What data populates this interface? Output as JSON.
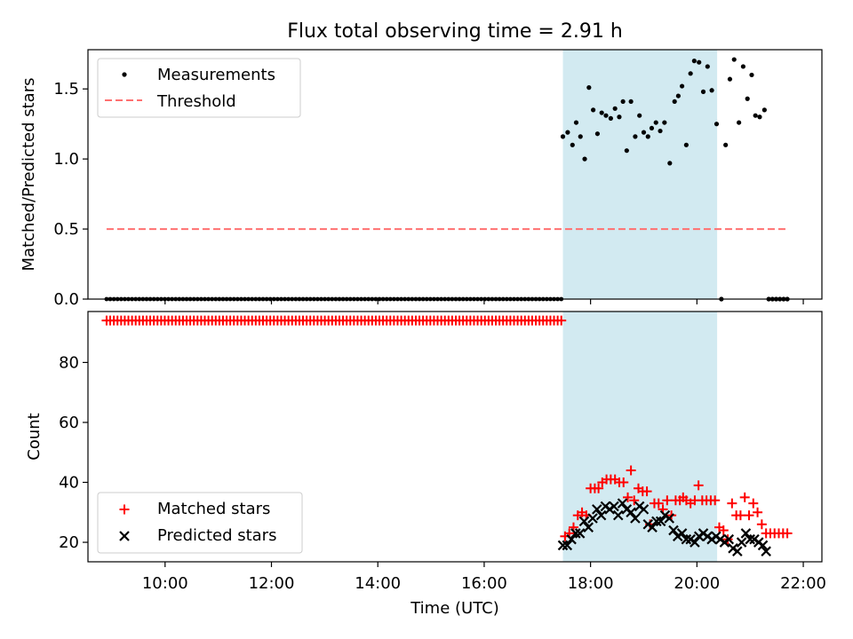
{
  "chart_data": {
    "title": "Flux total observing time = 2.91 h",
    "xlabel": "Time (UTC)",
    "x_units": "hours (UTC)",
    "xlim": [
      8.55,
      22.35
    ],
    "xticks": [
      10,
      12,
      14,
      16,
      18,
      20,
      22
    ],
    "xtick_labels": [
      "10:00",
      "12:00",
      "14:00",
      "16:00",
      "18:00",
      "20:00",
      "22:00"
    ],
    "observing_window": {
      "start": 17.48,
      "end": 20.38,
      "color": "#add8e6"
    },
    "top": {
      "type": "scatter",
      "ylabel": "Matched/Predicted stars",
      "ylim": [
        0,
        1.78
      ],
      "yticks": [
        0.0,
        0.5,
        1.0,
        1.5
      ],
      "ytick_labels": [
        "0.0",
        "0.5",
        "1.0",
        "1.5"
      ],
      "legend": {
        "position": "top-left",
        "items": [
          "Measurements",
          "Threshold"
        ]
      },
      "threshold": {
        "name": "Threshold",
        "value": 0.5,
        "x_range": [
          8.9,
          21.7
        ],
        "color": "#ff7070"
      },
      "measurements": {
        "name": "Measurements",
        "color": "#000000",
        "zero_x_range": [
          8.9,
          17.45
        ],
        "zero_count": 126,
        "points": [
          [
            17.48,
            1.16
          ],
          [
            17.57,
            1.19
          ],
          [
            17.66,
            1.1
          ],
          [
            17.73,
            1.26
          ],
          [
            17.81,
            1.16
          ],
          [
            17.89,
            1.0
          ],
          [
            17.97,
            1.51
          ],
          [
            18.05,
            1.35
          ],
          [
            18.13,
            1.18
          ],
          [
            18.21,
            1.33
          ],
          [
            18.29,
            1.31
          ],
          [
            18.38,
            1.29
          ],
          [
            18.46,
            1.36
          ],
          [
            18.54,
            1.3
          ],
          [
            18.61,
            1.41
          ],
          [
            18.68,
            1.06
          ],
          [
            18.76,
            1.41
          ],
          [
            18.84,
            1.16
          ],
          [
            18.92,
            1.31
          ],
          [
            19.0,
            1.19
          ],
          [
            19.08,
            1.16
          ],
          [
            19.15,
            1.22
          ],
          [
            19.23,
            1.26
          ],
          [
            19.31,
            1.2
          ],
          [
            19.39,
            1.26
          ],
          [
            19.49,
            0.97
          ],
          [
            19.58,
            1.41
          ],
          [
            19.65,
            1.45
          ],
          [
            19.72,
            1.52
          ],
          [
            19.8,
            1.1
          ],
          [
            19.88,
            1.61
          ],
          [
            19.95,
            1.7
          ],
          [
            20.04,
            1.69
          ],
          [
            20.12,
            1.48
          ],
          [
            20.2,
            1.66
          ],
          [
            20.28,
            1.49
          ],
          [
            20.37,
            1.25
          ],
          [
            20.46,
            0.0
          ],
          [
            20.54,
            1.1
          ],
          [
            20.62,
            1.57
          ],
          [
            20.7,
            1.71
          ],
          [
            20.79,
            1.26
          ],
          [
            20.87,
            1.66
          ],
          [
            20.95,
            1.43
          ],
          [
            21.03,
            1.6
          ],
          [
            21.1,
            1.31
          ],
          [
            21.18,
            1.3
          ],
          [
            21.27,
            1.35
          ],
          [
            21.35,
            0.0
          ],
          [
            21.42,
            0.0
          ],
          [
            21.49,
            0.0
          ],
          [
            21.56,
            0.0
          ],
          [
            21.63,
            0.0
          ],
          [
            21.7,
            0.0
          ]
        ]
      }
    },
    "bottom": {
      "type": "scatter",
      "ylabel": "Count",
      "ylim": [
        13.5,
        97
      ],
      "yticks": [
        20,
        40,
        60,
        80
      ],
      "ytick_labels": [
        "20",
        "40",
        "60",
        "80"
      ],
      "legend": {
        "position": "bottom-left",
        "items": [
          "Matched stars",
          "Predicted stars"
        ]
      },
      "matched_stars": {
        "name": "Matched stars",
        "color": "#ff0000",
        "marker": "+",
        "flat_value": 94,
        "flat_x_range": [
          8.9,
          17.45
        ],
        "flat_count": 126,
        "points": [
          [
            17.52,
            22
          ],
          [
            17.6,
            23
          ],
          [
            17.68,
            25
          ],
          [
            17.76,
            29
          ],
          [
            17.84,
            30
          ],
          [
            17.92,
            29
          ],
          [
            18.0,
            38
          ],
          [
            18.08,
            38
          ],
          [
            18.15,
            38
          ],
          [
            18.22,
            40
          ],
          [
            18.3,
            41
          ],
          [
            18.38,
            41
          ],
          [
            18.46,
            41
          ],
          [
            18.54,
            40
          ],
          [
            18.62,
            40
          ],
          [
            18.7,
            35
          ],
          [
            18.76,
            44
          ],
          [
            18.82,
            34
          ],
          [
            18.9,
            38
          ],
          [
            18.98,
            37
          ],
          [
            19.06,
            37
          ],
          [
            19.12,
            26
          ],
          [
            19.2,
            33
          ],
          [
            19.28,
            33
          ],
          [
            19.36,
            31
          ],
          [
            19.44,
            34
          ],
          [
            19.52,
            29
          ],
          [
            19.6,
            34
          ],
          [
            19.68,
            34
          ],
          [
            19.74,
            35
          ],
          [
            19.8,
            34
          ],
          [
            19.88,
            33
          ],
          [
            19.96,
            34
          ],
          [
            20.03,
            39
          ],
          [
            20.1,
            34
          ],
          [
            20.18,
            34
          ],
          [
            20.26,
            34
          ],
          [
            20.34,
            34
          ],
          [
            20.42,
            25
          ],
          [
            20.5,
            24
          ],
          [
            20.58,
            21
          ],
          [
            20.66,
            33
          ],
          [
            20.74,
            29
          ],
          [
            20.82,
            29
          ],
          [
            20.9,
            35
          ],
          [
            20.98,
            29
          ],
          [
            21.06,
            33
          ],
          [
            21.14,
            30
          ],
          [
            21.22,
            26
          ],
          [
            21.3,
            23
          ],
          [
            21.38,
            23
          ],
          [
            21.46,
            23
          ],
          [
            21.54,
            23
          ],
          [
            21.62,
            23
          ],
          [
            21.7,
            23
          ]
        ]
      },
      "predicted_stars": {
        "name": "Predicted stars",
        "color": "#000000",
        "marker": "x",
        "points": [
          [
            17.48,
            19
          ],
          [
            17.56,
            19
          ],
          [
            17.64,
            21
          ],
          [
            17.72,
            23
          ],
          [
            17.8,
            23
          ],
          [
            17.88,
            27
          ],
          [
            17.96,
            25
          ],
          [
            18.04,
            28
          ],
          [
            18.12,
            31
          ],
          [
            18.2,
            29
          ],
          [
            18.28,
            32
          ],
          [
            18.36,
            31
          ],
          [
            18.44,
            32
          ],
          [
            18.52,
            29
          ],
          [
            18.6,
            33
          ],
          [
            18.68,
            31
          ],
          [
            18.76,
            30
          ],
          [
            18.84,
            28
          ],
          [
            18.92,
            32
          ],
          [
            19.0,
            31
          ],
          [
            19.08,
            26
          ],
          [
            19.16,
            25
          ],
          [
            19.24,
            27
          ],
          [
            19.32,
            27
          ],
          [
            19.4,
            29
          ],
          [
            19.48,
            28
          ],
          [
            19.56,
            24
          ],
          [
            19.64,
            22
          ],
          [
            19.72,
            23
          ],
          [
            19.8,
            21
          ],
          [
            19.88,
            21
          ],
          [
            19.96,
            20
          ],
          [
            20.04,
            22
          ],
          [
            20.12,
            23
          ],
          [
            20.2,
            22
          ],
          [
            20.28,
            21
          ],
          [
            20.36,
            22
          ],
          [
            20.44,
            21
          ],
          [
            20.52,
            20
          ],
          [
            20.6,
            21
          ],
          [
            20.68,
            18
          ],
          [
            20.76,
            17
          ],
          [
            20.84,
            20
          ],
          [
            20.92,
            23
          ],
          [
            21.0,
            21
          ],
          [
            21.08,
            21
          ],
          [
            21.16,
            20
          ],
          [
            21.24,
            19
          ],
          [
            21.3,
            17
          ]
        ]
      }
    }
  }
}
